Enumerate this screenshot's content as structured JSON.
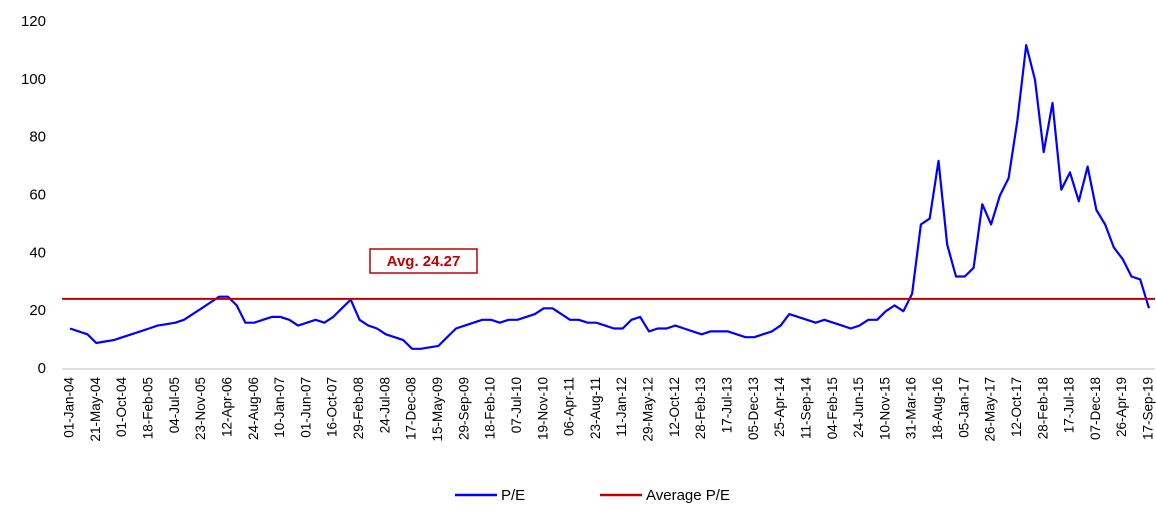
{
  "chart_data": {
    "type": "line",
    "categories": [
      "01-Jan-04",
      null,
      null,
      "21-May-04",
      null,
      null,
      "01-Oct-04",
      null,
      null,
      "18-Feb-05",
      null,
      null,
      "04-Jul-05",
      null,
      null,
      "23-Nov-05",
      null,
      null,
      "12-Apr-06",
      null,
      null,
      "24-Aug-06",
      null,
      null,
      "10-Jan-07",
      null,
      null,
      "01-Jun-07",
      null,
      null,
      "16-Oct-07",
      null,
      null,
      "29-Feb-08",
      null,
      null,
      "24-Jul-08",
      null,
      null,
      "17-Dec-08",
      null,
      null,
      "15-May-09",
      null,
      null,
      "29-Sep-09",
      null,
      null,
      "18-Feb-10",
      null,
      null,
      "07-Jul-10",
      null,
      null,
      "19-Nov-10",
      null,
      null,
      "06-Apr-11",
      null,
      null,
      "23-Aug-11",
      null,
      null,
      "11-Jan-12",
      null,
      null,
      "29-May-12",
      null,
      null,
      "12-Oct-12",
      null,
      null,
      "28-Feb-13",
      null,
      null,
      "17-Jul-13",
      null,
      null,
      "05-Dec-13",
      null,
      null,
      "25-Apr-14",
      null,
      null,
      "11-Sep-14",
      null,
      null,
      "04-Feb-15",
      null,
      null,
      "24-Jun-15",
      null,
      null,
      "10-Nov-15",
      null,
      null,
      "31-Mar-16",
      null,
      null,
      "18-Aug-16",
      null,
      null,
      "05-Jan-17",
      null,
      null,
      "26-May-17",
      null,
      null,
      "12-Oct-17",
      null,
      null,
      "28-Feb-18",
      null,
      null,
      "17-Jul-18",
      null,
      null,
      "07-Dec-18",
      null,
      null,
      "26-Apr-19",
      null,
      null,
      "17-Sep-19"
    ],
    "series": [
      {
        "name": "P/E",
        "color": "#0000ff",
        "values": [
          14,
          13,
          12,
          9,
          9.5,
          10,
          11,
          12,
          13,
          14,
          15,
          15.5,
          16,
          17,
          19,
          21,
          23,
          25,
          25,
          22,
          16,
          16,
          17,
          18,
          18,
          17,
          15,
          16,
          17,
          16,
          18,
          21,
          24,
          17,
          15,
          14,
          12,
          11,
          10,
          7,
          7,
          7.5,
          8,
          11,
          14,
          15,
          16,
          17,
          17,
          16,
          17,
          17,
          18,
          19,
          21,
          21,
          19,
          17,
          17,
          16,
          16,
          15,
          14,
          14,
          17,
          18,
          13,
          14,
          14,
          15,
          14,
          13,
          12,
          13,
          13,
          13,
          12,
          11,
          11,
          12,
          13,
          15,
          19,
          18,
          17,
          16,
          17,
          16,
          15,
          14,
          15,
          17,
          17,
          20,
          22,
          20,
          26,
          50,
          52,
          72,
          43,
          32,
          32,
          35,
          57,
          50,
          60,
          66,
          86,
          112,
          100,
          75,
          92,
          62,
          68,
          58,
          70,
          55,
          50,
          42,
          38,
          32,
          31,
          21
        ]
      }
    ],
    "reference_line": {
      "name": "Average P/E",
      "value": 24.27,
      "label": "Avg. 24.27",
      "color": "#c00000"
    },
    "ylim": [
      0,
      120
    ],
    "yticks": [
      0,
      20,
      40,
      60,
      80,
      100,
      120
    ],
    "grid": false
  }
}
